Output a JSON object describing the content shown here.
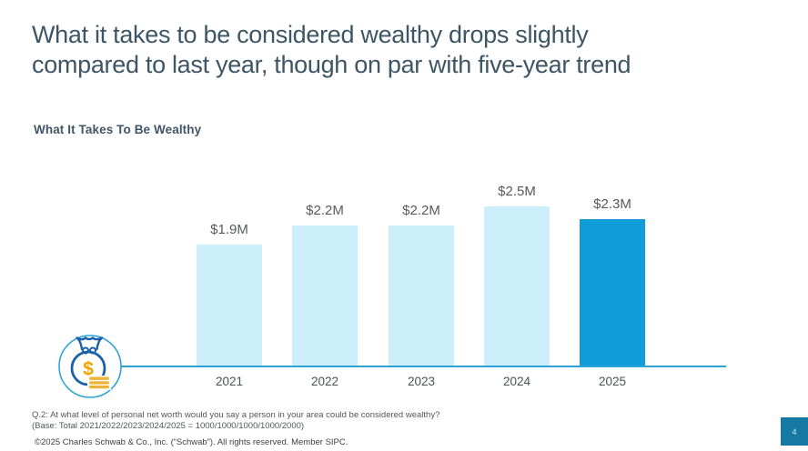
{
  "page": {
    "title": "What it takes to be considered wealthy drops slightly\ncompared to last year, though on par with five-year trend",
    "page_number": "4"
  },
  "chart_data": {
    "type": "bar",
    "title": "What It Takes To Be Wealthy",
    "categories": [
      "2021",
      "2022",
      "2023",
      "2024",
      "2025"
    ],
    "values": [
      1.9,
      2.2,
      2.2,
      2.5,
      2.3
    ],
    "value_labels": [
      "$1.9M",
      "$2.2M",
      "$2.2M",
      "$2.5M",
      "$2.3M"
    ],
    "highlight_index": 4,
    "grid": false,
    "legend": false,
    "colors": {
      "bar": "#cdeefb",
      "highlight_bar": "#109cd9",
      "axis_line": "#2ba3d6",
      "value_label": "#58595b",
      "category_label": "#4b5257",
      "title": "#3d5565"
    }
  },
  "icons": {
    "money_bag": "money-bag-icon"
  },
  "footnotes": {
    "question": "Q.2:  At what level of personal net worth would you say a person in your area could be considered wealthy?",
    "base": "(Base: Total 2021/2022/2023/2024/2025 = 1000/1000/1000/1000/2000)",
    "copyright": "©2025 Charles Schwab & Co., Inc. (“Schwab”). All rights reserved. Member SIPC."
  }
}
